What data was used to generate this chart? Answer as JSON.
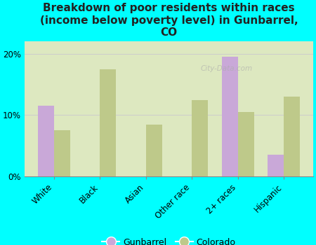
{
  "title": "Breakdown of poor residents within races\n(income below poverty level) in Gunbarrel,\nCO",
  "categories": [
    "White",
    "Black",
    "Asian",
    "Other race",
    "2+ races",
    "Hispanic"
  ],
  "gunbarrel_values": [
    11.5,
    0,
    0,
    0,
    19.5,
    3.5
  ],
  "colorado_values": [
    7.5,
    17.5,
    8.5,
    12.5,
    10.5,
    13.0
  ],
  "gunbarrel_color": "#c9a8d8",
  "colorado_color": "#bec98a",
  "background_outer": "#00ffff",
  "background_plot": "#dde8c0",
  "yticks": [
    0,
    10,
    20
  ],
  "ytick_labels": [
    "0%",
    "10%",
    "20%"
  ],
  "ylim": [
    0,
    22
  ],
  "bar_width": 0.35,
  "title_fontsize": 11,
  "tick_fontsize": 8.5,
  "legend_fontsize": 9
}
